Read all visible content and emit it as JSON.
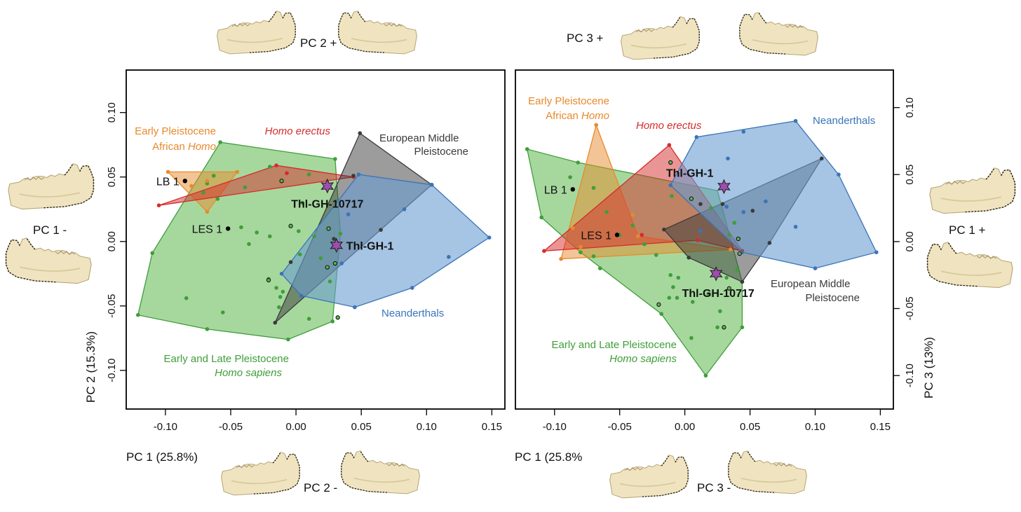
{
  "colors": {
    "green": "#3f9e3a",
    "green_fill": "#5db84f",
    "orange": "#e8892b",
    "red": "#d62b2b",
    "gray": "#3a3a3a",
    "blue": "#3b74b8",
    "blue_fill": "#6a9dd0",
    "star": "#a04cb0",
    "bone": "#efe4bf"
  },
  "extreme_labels": {
    "left_top": "PC 2 +",
    "left_bottom": "PC 2 -",
    "left_left": "PC 1 -",
    "right_top": "PC 3 +",
    "right_bottom": "PC 3 -",
    "right_right": "PC 1 +"
  },
  "icons": [
    "mandible-icon"
  ],
  "chart_data": [
    {
      "type": "scatter",
      "xlabel": "PC 1 (25.8%)",
      "ylabel": "PC 2 (15.3%)",
      "xlim": [
        -0.13,
        0.16
      ],
      "ylim": [
        -0.13,
        0.133
      ],
      "xticks": [
        "-0.10",
        "-0.05",
        "0.00",
        "0.05",
        "0.10",
        "0.15"
      ],
      "yticks": [
        "-0.10",
        "-0.05",
        "0.00",
        "0.05",
        "0.10"
      ],
      "y_axis_side": "left",
      "groups": [
        {
          "name": "Early and Late Pleistocene",
          "name_italic": "Homo sapiens",
          "color_key": "green",
          "hull": [
            [
              -0.121,
              -0.057
            ],
            [
              -0.11,
              -0.009
            ],
            [
              -0.058,
              0.077
            ],
            [
              0.03,
              0.064
            ],
            [
              0.034,
              0.006
            ],
            [
              0.028,
              -0.062
            ],
            [
              -0.006,
              -0.076
            ],
            [
              -0.068,
              -0.068
            ]
          ],
          "points": [
            [
              -0.121,
              -0.057
            ],
            [
              -0.11,
              -0.009
            ],
            [
              -0.058,
              0.077
            ],
            [
              -0.068,
              -0.068
            ],
            [
              -0.006,
              -0.076
            ],
            [
              0.028,
              -0.062
            ],
            [
              0.03,
              0.064
            ],
            [
              0.034,
              0.006
            ],
            [
              -0.068,
              0.045
            ],
            [
              -0.063,
              0.051
            ],
            [
              -0.071,
              0.038
            ],
            [
              -0.06,
              0.033
            ],
            [
              -0.056,
              -0.055
            ],
            [
              -0.039,
              0.042
            ],
            [
              -0.021,
              -0.029
            ],
            [
              -0.015,
              -0.036
            ],
            [
              -0.012,
              -0.043
            ],
            [
              -0.01,
              -0.039
            ],
            [
              -0.013,
              -0.051
            ],
            [
              -0.03,
              0.007
            ],
            [
              -0.02,
              0.004
            ],
            [
              -0.036,
              -0.002
            ],
            [
              0.003,
              -0.01
            ],
            [
              0.005,
              0.03
            ],
            [
              0.002,
              0.008
            ],
            [
              0.01,
              -0.06
            ],
            [
              0.019,
              -0.013
            ],
            [
              0.026,
              -0.031
            ],
            [
              0.014,
              0.004
            ],
            [
              -0.042,
              0.011
            ],
            [
              -0.084,
              -0.044
            ],
            [
              -0.02,
              0.058
            ],
            [
              0.01,
              0.052
            ]
          ]
        },
        {
          "name": "Early Pleistocene",
          "name_line2": "African",
          "name_italic": "Homo",
          "color_key": "orange",
          "hull": [
            [
              -0.098,
              0.054
            ],
            [
              -0.068,
              0.023
            ],
            [
              -0.045,
              0.054
            ]
          ],
          "points": [
            [
              -0.098,
              0.054
            ],
            [
              -0.068,
              0.023
            ],
            [
              -0.045,
              0.054
            ],
            [
              -0.08,
              0.043
            ],
            [
              -0.068,
              0.047
            ]
          ]
        },
        {
          "name": "Homo erectus",
          "color_key": "red",
          "hull": [
            [
              -0.105,
              0.028
            ],
            [
              -0.015,
              0.059
            ],
            [
              0.044,
              0.05
            ]
          ],
          "points": [
            [
              -0.105,
              0.028
            ],
            [
              -0.015,
              0.059
            ],
            [
              0.044,
              0.05
            ],
            [
              -0.007,
              0.053
            ]
          ]
        },
        {
          "name": "European Middle",
          "name_line2": "Pleistocene",
          "color_key": "gray",
          "hull": [
            [
              -0.016,
              -0.063
            ],
            [
              0.049,
              0.084
            ],
            [
              0.104,
              0.044
            ]
          ],
          "points": [
            [
              -0.016,
              -0.063
            ],
            [
              0.049,
              0.084
            ],
            [
              0.104,
              0.044
            ],
            [
              0.065,
              0.009
            ],
            [
              0.029,
              0.002
            ],
            [
              0.044,
              0.051
            ],
            [
              -0.004,
              -0.016
            ]
          ]
        },
        {
          "name": "Neanderthals",
          "color_key": "blue",
          "hull": [
            [
              -0.011,
              -0.025
            ],
            [
              0.048,
              0.052
            ],
            [
              0.104,
              0.044
            ],
            [
              0.148,
              0.003
            ],
            [
              0.089,
              -0.036
            ],
            [
              0.045,
              -0.051
            ],
            [
              0.004,
              -0.042
            ]
          ],
          "points": [
            [
              -0.011,
              -0.025
            ],
            [
              0.048,
              0.052
            ],
            [
              0.104,
              0.044
            ],
            [
              0.148,
              0.003
            ],
            [
              0.089,
              -0.036
            ],
            [
              0.045,
              -0.051
            ],
            [
              0.004,
              -0.042
            ],
            [
              0.083,
              0.025
            ],
            [
              0.117,
              -0.012
            ],
            [
              0.035,
              -0.017
            ],
            [
              0.04,
              0.021
            ]
          ]
        }
      ],
      "open_points": [
        [
          -0.011,
          0.047
        ],
        [
          -0.004,
          0.012
        ],
        [
          0.025,
          0.01
        ],
        [
          0.024,
          -0.02
        ],
        [
          0.03,
          -0.017
        ],
        [
          -0.021,
          -0.03
        ],
        [
          0.032,
          -0.059
        ]
      ],
      "labels": [
        {
          "text": "LB 1",
          "x": -0.085,
          "y": 0.047
        },
        {
          "text": "LES 1",
          "x": -0.052,
          "y": 0.01
        }
      ],
      "key_specimens": [
        {
          "text": "Thl-GH-10717",
          "x": 0.024,
          "y": 0.043
        },
        {
          "text": "Thl-GH-1",
          "x": 0.031,
          "y": -0.003
        }
      ]
    },
    {
      "type": "scatter",
      "xlabel": "PC 1 (25.8%",
      "ylabel": "PC 3 (13%)",
      "xlim": [
        -0.13,
        0.16
      ],
      "ylim": [
        -0.125,
        0.128
      ],
      "xticks": [
        "-0.10",
        "-0.05",
        "0.00",
        "0.05",
        "0.10",
        "0.15"
      ],
      "yticks": [
        "-0.10",
        "-0.05",
        "0.00",
        "0.05",
        "0.10"
      ],
      "y_axis_side": "right",
      "groups": [
        {
          "name": "Early and Late Pleistocene",
          "name_italic": "Homo sapiens",
          "color_key": "green",
          "hull": [
            [
              -0.121,
              0.069
            ],
            [
              -0.11,
              0.018
            ],
            [
              -0.08,
              -0.008
            ],
            [
              -0.018,
              -0.054
            ],
            [
              0.016,
              -0.1
            ],
            [
              0.044,
              -0.064
            ],
            [
              0.044,
              -0.03
            ],
            [
              0.025,
              0.038
            ],
            [
              -0.082,
              0.059
            ]
          ],
          "points": [
            [
              -0.121,
              0.069
            ],
            [
              -0.11,
              0.018
            ],
            [
              -0.08,
              -0.008
            ],
            [
              -0.018,
              -0.054
            ],
            [
              0.016,
              -0.1
            ],
            [
              0.044,
              -0.064
            ],
            [
              0.044,
              -0.03
            ],
            [
              -0.082,
              0.059
            ],
            [
              -0.088,
              0.048
            ],
            [
              -0.07,
              0.04
            ],
            [
              -0.06,
              0.022
            ],
            [
              -0.05,
              0.005
            ],
            [
              -0.04,
              0.012
            ],
            [
              -0.031,
              -0.002
            ],
            [
              -0.022,
              -0.01
            ],
            [
              -0.011,
              -0.025
            ],
            [
              -0.005,
              -0.027
            ],
            [
              -0.009,
              -0.034
            ],
            [
              -0.012,
              -0.042
            ],
            [
              -0.006,
              -0.042
            ],
            [
              0.006,
              -0.045
            ],
            [
              0.018,
              -0.039
            ],
            [
              0.027,
              -0.052
            ],
            [
              0.032,
              -0.027
            ],
            [
              0.04,
              -0.021
            ],
            [
              -0.07,
              -0.011
            ],
            [
              -0.065,
              -0.02
            ],
            [
              -0.01,
              0.034
            ],
            [
              0.02,
              0.025
            ],
            [
              0.038,
              0.014
            ],
            [
              0.034,
              0.005
            ],
            [
              0.005,
              -0.072
            ],
            [
              0.025,
              -0.064
            ]
          ]
        },
        {
          "name": "Early Pleistocene",
          "name_line2": "African",
          "name_italic": "Homo",
          "color_key": "orange",
          "hull": [
            [
              -0.095,
              -0.013
            ],
            [
              -0.068,
              0.087
            ],
            [
              -0.036,
              0.004
            ],
            [
              0.035,
              -0.006
            ]
          ],
          "points": [
            [
              -0.095,
              -0.013
            ],
            [
              -0.068,
              0.087
            ],
            [
              -0.036,
              0.004
            ],
            [
              0.035,
              -0.006
            ],
            [
              -0.08,
              -0.004
            ],
            [
              -0.086,
              0.01
            ],
            [
              -0.04,
              0.02
            ]
          ]
        },
        {
          "name": "Homo erectus",
          "color_key": "red",
          "hull": [
            [
              -0.108,
              -0.007
            ],
            [
              -0.012,
              0.072
            ],
            [
              0.044,
              -0.007
            ],
            [
              0.01,
              0.001
            ]
          ],
          "points": [
            [
              -0.108,
              -0.007
            ],
            [
              -0.012,
              0.072
            ],
            [
              0.044,
              -0.007
            ],
            [
              0.01,
              0.001
            ],
            [
              -0.033,
              0.005
            ]
          ]
        },
        {
          "name": "European Middle",
          "name_line2": "Pleistocene",
          "color_key": "gray",
          "hull": [
            [
              -0.016,
              0.009
            ],
            [
              0.105,
              0.062
            ],
            [
              0.065,
              -0.001
            ],
            [
              0.044,
              -0.03
            ],
            [
              0.003,
              -0.012
            ]
          ],
          "points": [
            [
              -0.016,
              0.009
            ],
            [
              0.105,
              0.062
            ],
            [
              0.065,
              -0.001
            ],
            [
              0.044,
              -0.03
            ],
            [
              0.003,
              -0.012
            ],
            [
              0.029,
              0.028
            ],
            [
              0.052,
              0.023
            ],
            [
              0.012,
              0.028
            ]
          ]
        },
        {
          "name": "Neanderthals",
          "color_key": "blue",
          "hull": [
            [
              0.009,
              0.078
            ],
            [
              0.085,
              0.09
            ],
            [
              0.118,
              0.05
            ],
            [
              0.147,
              -0.008
            ],
            [
              0.1,
              -0.02
            ],
            [
              0.044,
              -0.008
            ],
            [
              -0.011,
              0.042
            ]
          ],
          "points": [
            [
              0.009,
              0.078
            ],
            [
              0.085,
              0.09
            ],
            [
              0.118,
              0.05
            ],
            [
              0.147,
              -0.008
            ],
            [
              0.1,
              -0.02
            ],
            [
              0.044,
              -0.008
            ],
            [
              -0.011,
              0.042
            ],
            [
              0.045,
              0.082
            ],
            [
              0.033,
              0.062
            ],
            [
              0.085,
              0.011
            ],
            [
              0.045,
              0.022
            ],
            [
              0.032,
              0.026
            ],
            [
              0.012,
              0.008
            ],
            [
              0.062,
              0.03
            ]
          ]
        }
      ],
      "open_points": [
        [
          -0.011,
          0.059
        ],
        [
          0.005,
          0.032
        ],
        [
          0.041,
          0.002
        ],
        [
          0.042,
          -0.009
        ],
        [
          0.034,
          -0.035
        ],
        [
          -0.02,
          -0.047
        ],
        [
          0.03,
          -0.064
        ]
      ],
      "labels": [
        {
          "text": "LB 1",
          "x": -0.086,
          "y": 0.039
        },
        {
          "text": "LES 1",
          "x": -0.052,
          "y": 0.005
        }
      ],
      "key_specimens": [
        {
          "text": "Thl-GH-1",
          "x": 0.03,
          "y": 0.041
        },
        {
          "text": "Thl-GH-10717",
          "x": 0.024,
          "y": -0.024
        }
      ]
    }
  ]
}
